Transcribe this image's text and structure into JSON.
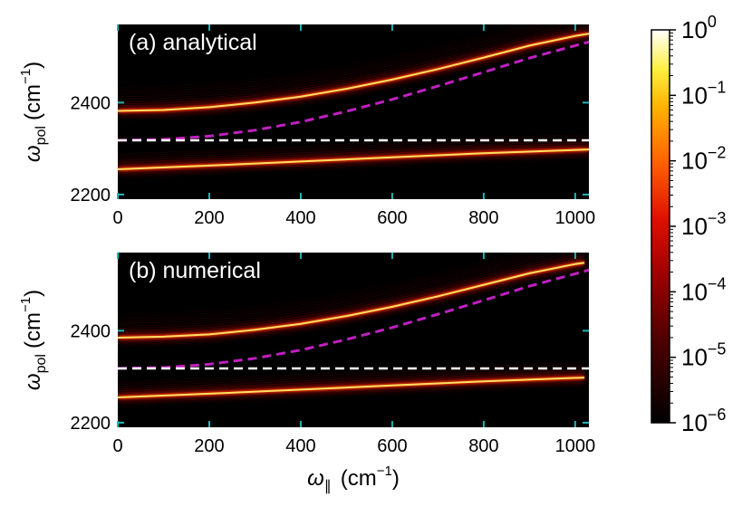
{
  "chart_data": [
    {
      "type": "heatmap",
      "panel_label": "(a) analytical",
      "xlim": [
        0,
        1030
      ],
      "ylim": [
        2190,
        2570
      ],
      "xticks": [
        0,
        200,
        400,
        600,
        800,
        1000
      ],
      "yticks": [
        2200,
        2400
      ],
      "y_symbol": "ω",
      "y_subscript": "pol",
      "y_unit": "(cm",
      "y_unit_exp": "−1",
      "y_unit_close": ")",
      "upper_branch": {
        "x": [
          0,
          100,
          200,
          300,
          400,
          500,
          600,
          700,
          800,
          900,
          1000,
          1030
        ],
        "y": [
          2382,
          2384,
          2390,
          2400,
          2413,
          2430,
          2450,
          2473,
          2498,
          2524,
          2545,
          2550
        ]
      },
      "lower_branch": {
        "x": [
          0,
          200,
          400,
          600,
          800,
          1030
        ],
        "y": [
          2255,
          2263,
          2272,
          2281,
          2290,
          2298
        ]
      },
      "dashed_magenta": {
        "x": [
          0,
          100,
          200,
          300,
          400,
          500,
          600,
          700,
          800,
          900,
          1000,
          1030
        ],
        "y": [
          2318,
          2320,
          2327,
          2340,
          2358,
          2381,
          2407,
          2436,
          2466,
          2497,
          2524,
          2532
        ]
      },
      "dashed_white": {
        "x": [
          0,
          1030
        ],
        "y": [
          2318,
          2318
        ]
      }
    },
    {
      "type": "heatmap",
      "panel_label": "(b) numerical",
      "xlim": [
        0,
        1030
      ],
      "ylim": [
        2190,
        2570
      ],
      "xticks": [
        0,
        200,
        400,
        600,
        800,
        1000
      ],
      "yticks": [
        2200,
        2400
      ],
      "x_symbol": "ω",
      "x_subscript": "∥",
      "x_unit": "(cm",
      "x_unit_exp": "−1",
      "x_unit_close": ")",
      "y_symbol": "ω",
      "y_subscript": "pol",
      "y_unit": "(cm",
      "y_unit_exp": "−1",
      "y_unit_close": ")",
      "upper_branch": {
        "x": [
          0,
          100,
          200,
          300,
          400,
          500,
          600,
          700,
          800,
          900,
          1000,
          1020
        ],
        "y": [
          2385,
          2387,
          2392,
          2402,
          2415,
          2432,
          2452,
          2475,
          2500,
          2525,
          2545,
          2548
        ]
      },
      "lower_branch": {
        "x": [
          0,
          200,
          400,
          600,
          800,
          1020
        ],
        "y": [
          2255,
          2263,
          2272,
          2281,
          2290,
          2298
        ]
      },
      "dashed_magenta": {
        "x": [
          0,
          100,
          200,
          300,
          400,
          500,
          600,
          700,
          800,
          900,
          1000,
          1030
        ],
        "y": [
          2318,
          2320,
          2327,
          2340,
          2358,
          2381,
          2407,
          2436,
          2466,
          2497,
          2524,
          2532
        ]
      },
      "dashed_white": {
        "x": [
          0,
          1030
        ],
        "y": [
          2318,
          2318
        ]
      }
    }
  ],
  "colorbar": {
    "scale": "log",
    "range": [
      1e-06,
      1
    ],
    "ticks": [
      {
        "base": "10",
        "exp": "0"
      },
      {
        "base": "10",
        "exp": "−1"
      },
      {
        "base": "10",
        "exp": "−2"
      },
      {
        "base": "10",
        "exp": "−3"
      },
      {
        "base": "10",
        "exp": "−4"
      },
      {
        "base": "10",
        "exp": "−5"
      },
      {
        "base": "10",
        "exp": "−6"
      }
    ],
    "colormap": "hot"
  },
  "colors": {
    "magenta_dash": "#c020c0",
    "white_dash": "#ffffff",
    "tick_accent": "#1fb5b5",
    "background": "#000000"
  }
}
